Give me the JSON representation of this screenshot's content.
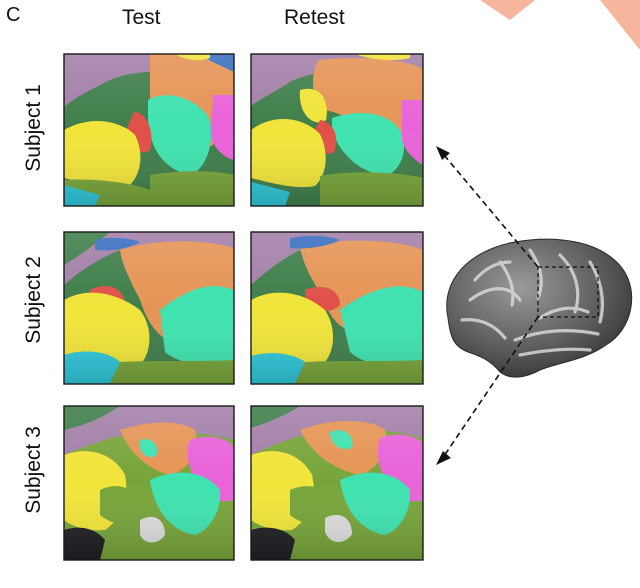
{
  "figure": {
    "panel_label": "C",
    "columns": [
      "Test",
      "Retest"
    ],
    "rows": [
      "Subject 1",
      "Subject 2",
      "Subject 3"
    ]
  },
  "colors": {
    "yellow": "#f1e43a",
    "orange": "#e59455",
    "teal": "#3fe2b0",
    "magenta": "#e863d8",
    "mauve": "#a37fa8",
    "olive": "#77a43a",
    "darkgreen": "#3f7e4a",
    "red": "#df5048",
    "blue": "#3a6fc0",
    "cyan": "#2fc6d8",
    "brain": "#6d6d6d",
    "accent": "#f6b69d"
  }
}
